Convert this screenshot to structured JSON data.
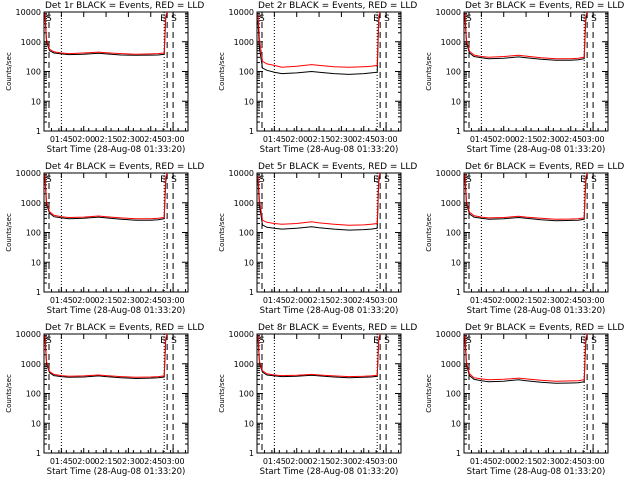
{
  "figure": {
    "xlabel": "Start Time (28-Aug-08 01:33:20)",
    "ylabel": "Counts/sec",
    "x_tick_labels": [
      "01:45",
      "02:00",
      "02:15",
      "02:30",
      "02:45",
      "03:00"
    ],
    "y_tick_labels": [
      "1",
      "10",
      "100",
      "1000",
      "10000"
    ],
    "marker_labels": {
      "start": "S",
      "end": "E"
    }
  },
  "chart_data": [
    {
      "type": "line",
      "title": "Det 1r BLACK = Events, RED = LLD",
      "xlabel": "Start Time (28-Aug-08 01:33:20)",
      "ylabel": "Counts/sec",
      "yscale": "log",
      "ylim": [
        1,
        10000
      ],
      "x": [
        "01:34",
        "01:35",
        "01:37",
        "01:40",
        "01:45",
        "01:50",
        "02:00",
        "02:10",
        "02:15",
        "02:25",
        "02:35",
        "02:45",
        "02:50",
        "02:54",
        "02:55",
        "02:56"
      ],
      "series": [
        {
          "name": "Events",
          "color": "#000000",
          "values": [
            8000,
            1000,
            500,
            420,
            390,
            370,
            380,
            410,
            390,
            360,
            350,
            355,
            360,
            380,
            6000,
            10000
          ]
        },
        {
          "name": "LLD",
          "color": "#ff0000",
          "values": [
            9000,
            1200,
            560,
            460,
            420,
            400,
            420,
            450,
            430,
            400,
            380,
            390,
            400,
            420,
            7000,
            10000
          ]
        }
      ],
      "markers": [
        {
          "label": "S",
          "x": "01:34"
        },
        {
          "label": "E",
          "x": "02:56"
        },
        {
          "label": "S",
          "x": "03:00"
        }
      ]
    },
    {
      "type": "line",
      "title": "Det 2r BLACK = Events, RED = LLD",
      "xlabel": "Start Time (28-Aug-08 01:33:20)",
      "ylabel": "Counts/sec",
      "yscale": "log",
      "ylim": [
        1,
        10000
      ],
      "x": [
        "01:34",
        "01:35",
        "01:37",
        "01:40",
        "01:45",
        "01:50",
        "02:00",
        "02:10",
        "02:15",
        "02:25",
        "02:35",
        "02:45",
        "02:50",
        "02:54",
        "02:55",
        "02:56"
      ],
      "series": [
        {
          "name": "Events",
          "color": "#000000",
          "values": [
            5000,
            600,
            130,
            110,
            95,
            85,
            90,
            100,
            95,
            85,
            80,
            85,
            90,
            95,
            5000,
            10000
          ]
        },
        {
          "name": "LLD",
          "color": "#ff0000",
          "values": [
            8000,
            1200,
            220,
            180,
            160,
            140,
            150,
            170,
            160,
            145,
            140,
            145,
            150,
            160,
            7000,
            10000
          ]
        }
      ],
      "markers": [
        {
          "label": "S",
          "x": "01:34"
        },
        {
          "label": "E",
          "x": "02:56"
        },
        {
          "label": "S",
          "x": "03:00"
        }
      ]
    },
    {
      "type": "line",
      "title": "Det 3r BLACK = Events, RED = LLD",
      "xlabel": "Start Time (28-Aug-08 01:33:20)",
      "ylabel": "Counts/sec",
      "yscale": "log",
      "ylim": [
        1,
        10000
      ],
      "x": [
        "01:34",
        "01:35",
        "01:37",
        "01:40",
        "01:45",
        "01:50",
        "02:00",
        "02:10",
        "02:15",
        "02:25",
        "02:35",
        "02:45",
        "02:50",
        "02:54",
        "02:55",
        "02:56"
      ],
      "series": [
        {
          "name": "Events",
          "color": "#000000",
          "values": [
            7000,
            900,
            420,
            320,
            290,
            270,
            280,
            310,
            290,
            260,
            240,
            240,
            250,
            270,
            5000,
            10000
          ]
        },
        {
          "name": "LLD",
          "color": "#ff0000",
          "values": [
            9000,
            1100,
            480,
            360,
            320,
            300,
            320,
            350,
            330,
            290,
            270,
            270,
            280,
            300,
            7000,
            10000
          ]
        }
      ],
      "markers": [
        {
          "label": "S",
          "x": "01:34"
        },
        {
          "label": "E",
          "x": "02:56"
        },
        {
          "label": "S",
          "x": "03:00"
        }
      ]
    },
    {
      "type": "line",
      "title": "Det 4r BLACK = Events, RED = LLD",
      "xlabel": "Start Time (28-Aug-08 01:33:20)",
      "ylabel": "Counts/sec",
      "yscale": "log",
      "ylim": [
        1,
        10000
      ],
      "x": [
        "01:34",
        "01:35",
        "01:37",
        "01:40",
        "01:45",
        "01:50",
        "02:00",
        "02:10",
        "02:15",
        "02:25",
        "02:35",
        "02:45",
        "02:50",
        "02:54",
        "02:55",
        "02:56"
      ],
      "series": [
        {
          "name": "Events",
          "color": "#000000",
          "values": [
            7000,
            900,
            450,
            340,
            310,
            290,
            300,
            330,
            310,
            280,
            260,
            260,
            270,
            290,
            5000,
            10000
          ]
        },
        {
          "name": "LLD",
          "color": "#ff0000",
          "values": [
            9000,
            1100,
            500,
            380,
            340,
            320,
            330,
            360,
            340,
            310,
            290,
            290,
            300,
            320,
            7000,
            10000
          ]
        }
      ],
      "markers": [
        {
          "label": "S",
          "x": "01:34"
        },
        {
          "label": "E",
          "x": "02:56"
        },
        {
          "label": "S",
          "x": "03:00"
        }
      ]
    },
    {
      "type": "line",
      "title": "Det 5r BLACK = Events, RED = LLD",
      "xlabel": "Start Time (28-Aug-08 01:33:20)",
      "ylabel": "Counts/sec",
      "yscale": "log",
      "ylim": [
        1,
        10000
      ],
      "x": [
        "01:34",
        "01:35",
        "01:37",
        "01:40",
        "01:45",
        "01:50",
        "02:00",
        "02:10",
        "02:15",
        "02:25",
        "02:35",
        "02:45",
        "02:50",
        "02:54",
        "02:55",
        "02:56"
      ],
      "series": [
        {
          "name": "Events",
          "color": "#000000",
          "values": [
            6000,
            800,
            180,
            150,
            140,
            130,
            140,
            155,
            145,
            130,
            120,
            125,
            130,
            140,
            5000,
            10000
          ]
        },
        {
          "name": "LLD",
          "color": "#ff0000",
          "values": [
            8000,
            1200,
            260,
            220,
            200,
            190,
            200,
            230,
            210,
            190,
            175,
            180,
            190,
            200,
            7000,
            10000
          ]
        }
      ],
      "markers": [
        {
          "label": "S",
          "x": "01:34"
        },
        {
          "label": "E",
          "x": "02:56"
        },
        {
          "label": "S",
          "x": "03:00"
        }
      ]
    },
    {
      "type": "line",
      "title": "Det 6r BLACK = Events, RED = LLD",
      "xlabel": "Start Time (28-Aug-08 01:33:20)",
      "ylabel": "Counts/sec",
      "yscale": "log",
      "ylim": [
        1,
        10000
      ],
      "x": [
        "01:34",
        "01:35",
        "01:37",
        "01:40",
        "01:45",
        "01:50",
        "02:00",
        "02:10",
        "02:15",
        "02:25",
        "02:35",
        "02:45",
        "02:50",
        "02:54",
        "02:55",
        "02:56"
      ],
      "series": [
        {
          "name": "Events",
          "color": "#000000",
          "values": [
            7000,
            900,
            420,
            330,
            300,
            280,
            290,
            320,
            300,
            270,
            250,
            255,
            260,
            280,
            5000,
            10000
          ]
        },
        {
          "name": "LLD",
          "color": "#ff0000",
          "values": [
            9000,
            1100,
            480,
            370,
            330,
            310,
            320,
            350,
            330,
            300,
            280,
            285,
            290,
            310,
            7000,
            10000
          ]
        }
      ],
      "markers": [
        {
          "label": "S",
          "x": "01:34"
        },
        {
          "label": "E",
          "x": "02:56"
        },
        {
          "label": "S",
          "x": "03:00"
        }
      ]
    },
    {
      "type": "line",
      "title": "Det 7r BLACK = Events, RED = LLD",
      "xlabel": "Start Time (28-Aug-08 01:33:20)",
      "ylabel": "Counts/sec",
      "yscale": "log",
      "ylim": [
        1,
        10000
      ],
      "x": [
        "01:34",
        "01:35",
        "01:37",
        "01:40",
        "01:45",
        "01:50",
        "02:00",
        "02:10",
        "02:15",
        "02:25",
        "02:35",
        "02:45",
        "02:50",
        "02:54",
        "02:55",
        "02:56"
      ],
      "series": [
        {
          "name": "Events",
          "color": "#000000",
          "values": [
            8000,
            1000,
            500,
            400,
            370,
            350,
            360,
            390,
            370,
            340,
            320,
            330,
            340,
            360,
            6000,
            10000
          ]
        },
        {
          "name": "LLD",
          "color": "#ff0000",
          "values": [
            9000,
            1200,
            550,
            440,
            400,
            380,
            390,
            420,
            400,
            370,
            350,
            360,
            370,
            390,
            7000,
            10000
          ]
        }
      ],
      "markers": [
        {
          "label": "S",
          "x": "01:34"
        },
        {
          "label": "E",
          "x": "02:56"
        },
        {
          "label": "S",
          "x": "03:00"
        }
      ]
    },
    {
      "type": "line",
      "title": "Det 8r BLACK = Events, RED = LLD",
      "xlabel": "Start Time (28-Aug-08 01:33:20)",
      "ylabel": "Counts/sec",
      "yscale": "log",
      "ylim": [
        1,
        10000
      ],
      "x": [
        "01:34",
        "01:35",
        "01:37",
        "01:40",
        "01:45",
        "01:50",
        "02:00",
        "02:10",
        "02:15",
        "02:25",
        "02:35",
        "02:45",
        "02:50",
        "02:54",
        "02:55",
        "02:56"
      ],
      "series": [
        {
          "name": "Events",
          "color": "#000000",
          "values": [
            8000,
            1000,
            520,
            420,
            390,
            370,
            380,
            410,
            390,
            360,
            340,
            350,
            360,
            380,
            6000,
            10000
          ]
        },
        {
          "name": "LLD",
          "color": "#ff0000",
          "values": [
            9000,
            1200,
            580,
            460,
            420,
            400,
            410,
            440,
            420,
            390,
            370,
            380,
            390,
            410,
            7000,
            10000
          ]
        }
      ],
      "markers": [
        {
          "label": "S",
          "x": "01:34"
        },
        {
          "label": "E",
          "x": "02:56"
        },
        {
          "label": "S",
          "x": "03:00"
        }
      ]
    },
    {
      "type": "line",
      "title": "Det 9r BLACK = Events, RED = LLD",
      "xlabel": "Start Time (28-Aug-08 01:33:20)",
      "ylabel": "Counts/sec",
      "yscale": "log",
      "ylim": [
        1,
        10000
      ],
      "x": [
        "01:34",
        "01:35",
        "01:37",
        "01:40",
        "01:45",
        "01:50",
        "02:00",
        "02:10",
        "02:15",
        "02:25",
        "02:35",
        "02:45",
        "02:50",
        "02:54",
        "02:55",
        "02:56"
      ],
      "series": [
        {
          "name": "Events",
          "color": "#000000",
          "values": [
            7000,
            900,
            400,
            300,
            270,
            250,
            260,
            290,
            270,
            240,
            220,
            225,
            230,
            250,
            5000,
            10000
          ]
        },
        {
          "name": "LLD",
          "color": "#ff0000",
          "values": [
            9000,
            1100,
            460,
            340,
            310,
            290,
            300,
            330,
            310,
            280,
            260,
            265,
            270,
            290,
            7000,
            10000
          ]
        }
      ],
      "markers": [
        {
          "label": "S",
          "x": "01:34"
        },
        {
          "label": "E",
          "x": "02:56"
        },
        {
          "label": "S",
          "x": "03:00"
        }
      ]
    }
  ]
}
